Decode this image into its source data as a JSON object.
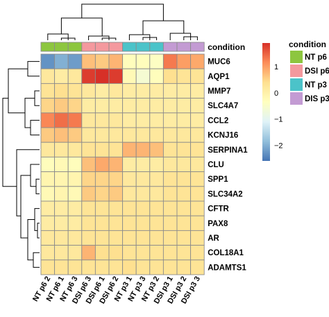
{
  "chart_data": {
    "type": "heatmap",
    "title": "",
    "columns": [
      "NT p6 2",
      "NT p6 1",
      "NT p6 3",
      "DSI p6 3",
      "DSI p6 1",
      "DSI p6 2",
      "NT p3 1",
      "NT p3 3",
      "NT p3 2",
      "DSI p3 1",
      "DSI p3 2",
      "DSI p3 3"
    ],
    "rows": [
      "MUC6",
      "AQP1",
      "MMP7",
      "SLC4A7",
      "CCL2",
      "KCNJ16",
      "SERPINA1",
      "CLU",
      "SPP1",
      "SLC34A2",
      "CFTR",
      "PAX8",
      "AR",
      "COL18A1",
      "ADAMTS1"
    ],
    "values": [
      [
        -2.3,
        -2.0,
        -2.2,
        0.7,
        0.6,
        0.8,
        -0.3,
        -0.3,
        -0.4,
        1.3,
        1.0,
        0.9
      ],
      [
        0.2,
        0.1,
        0.2,
        1.8,
        1.9,
        1.8,
        -0.2,
        -0.6,
        -0.3,
        0.4,
        0.3,
        0.3
      ],
      [
        0.3,
        0.4,
        0.3,
        0.2,
        0.1,
        0.2,
        0.1,
        0.1,
        0.1,
        0.1,
        0.1,
        0.1
      ],
      [
        0.5,
        0.6,
        0.5,
        0.1,
        0.1,
        0.1,
        0.1,
        0.1,
        0.1,
        0.1,
        0.1,
        0.1
      ],
      [
        1.2,
        1.4,
        1.3,
        0.2,
        0.2,
        0.2,
        0.1,
        0.1,
        0.1,
        0.1,
        0.1,
        0.1
      ],
      [
        0.6,
        0.7,
        0.6,
        0.2,
        0.2,
        0.2,
        0.2,
        0.2,
        0.2,
        0.2,
        0.2,
        0.2
      ],
      [
        0.2,
        0.2,
        0.2,
        0.3,
        0.3,
        0.3,
        0.8,
        0.8,
        0.7,
        0.3,
        0.3,
        0.3
      ],
      [
        -0.3,
        -0.2,
        -0.3,
        0.7,
        0.9,
        0.8,
        0.1,
        0.1,
        0.1,
        0.2,
        0.2,
        0.2
      ],
      [
        -0.1,
        -0.1,
        -0.1,
        0.5,
        0.5,
        0.5,
        0.2,
        0.2,
        0.2,
        0.3,
        0.3,
        0.3
      ],
      [
        -0.2,
        -0.1,
        -0.2,
        0.6,
        0.5,
        0.6,
        0.2,
        0.2,
        0.2,
        0.3,
        0.3,
        0.3
      ],
      [
        0.1,
        0.1,
        0.1,
        0.3,
        0.3,
        0.3,
        0.3,
        0.3,
        0.3,
        0.3,
        0.3,
        0.3
      ],
      [
        0.1,
        0.1,
        0.1,
        0.3,
        0.3,
        0.3,
        0.3,
        0.3,
        0.3,
        0.3,
        0.3,
        0.3
      ],
      [
        0.2,
        0.2,
        0.2,
        0.3,
        0.3,
        0.3,
        0.3,
        0.3,
        0.3,
        0.3,
        0.3,
        0.3
      ],
      [
        0.2,
        0.2,
        0.2,
        0.8,
        0.4,
        0.4,
        0.3,
        0.3,
        0.3,
        0.3,
        0.3,
        0.3
      ],
      [
        0.3,
        0.3,
        0.3,
        0.3,
        0.3,
        0.3,
        0.4,
        0.3,
        0.3,
        0.3,
        0.3,
        0.3
      ]
    ],
    "column_condition": [
      "NT p6",
      "NT p6",
      "NT p6",
      "DSI p6",
      "DSI p6",
      "DSI p6",
      "NT p3",
      "NT p3",
      "NT p3",
      "DIS p3",
      "DIS p3",
      "DIS p3"
    ],
    "annotation_label": "condition",
    "legend": {
      "title": "condition",
      "items": [
        {
          "label": "NT p6",
          "color": "#8DC63F"
        },
        {
          "label": "DSI p6",
          "color": "#F4999E"
        },
        {
          "label": "NT p3",
          "color": "#4BC3C9"
        },
        {
          "label": "DIS p3",
          "color": "#C39BD3"
        }
      ]
    },
    "colorscale": {
      "range": [
        -2.6,
        1.9
      ],
      "ticks": [
        -2,
        -1,
        0,
        1
      ],
      "tick_labels": [
        "−2",
        "−1",
        "0",
        "1"
      ],
      "colors": [
        "#4575B4",
        "#91BFDB",
        "#E0F3F8",
        "#FFFFBF",
        "#FEE090",
        "#FC8D59",
        "#D73027"
      ]
    },
    "row_dendrogram": true,
    "column_dendrogram": true
  }
}
